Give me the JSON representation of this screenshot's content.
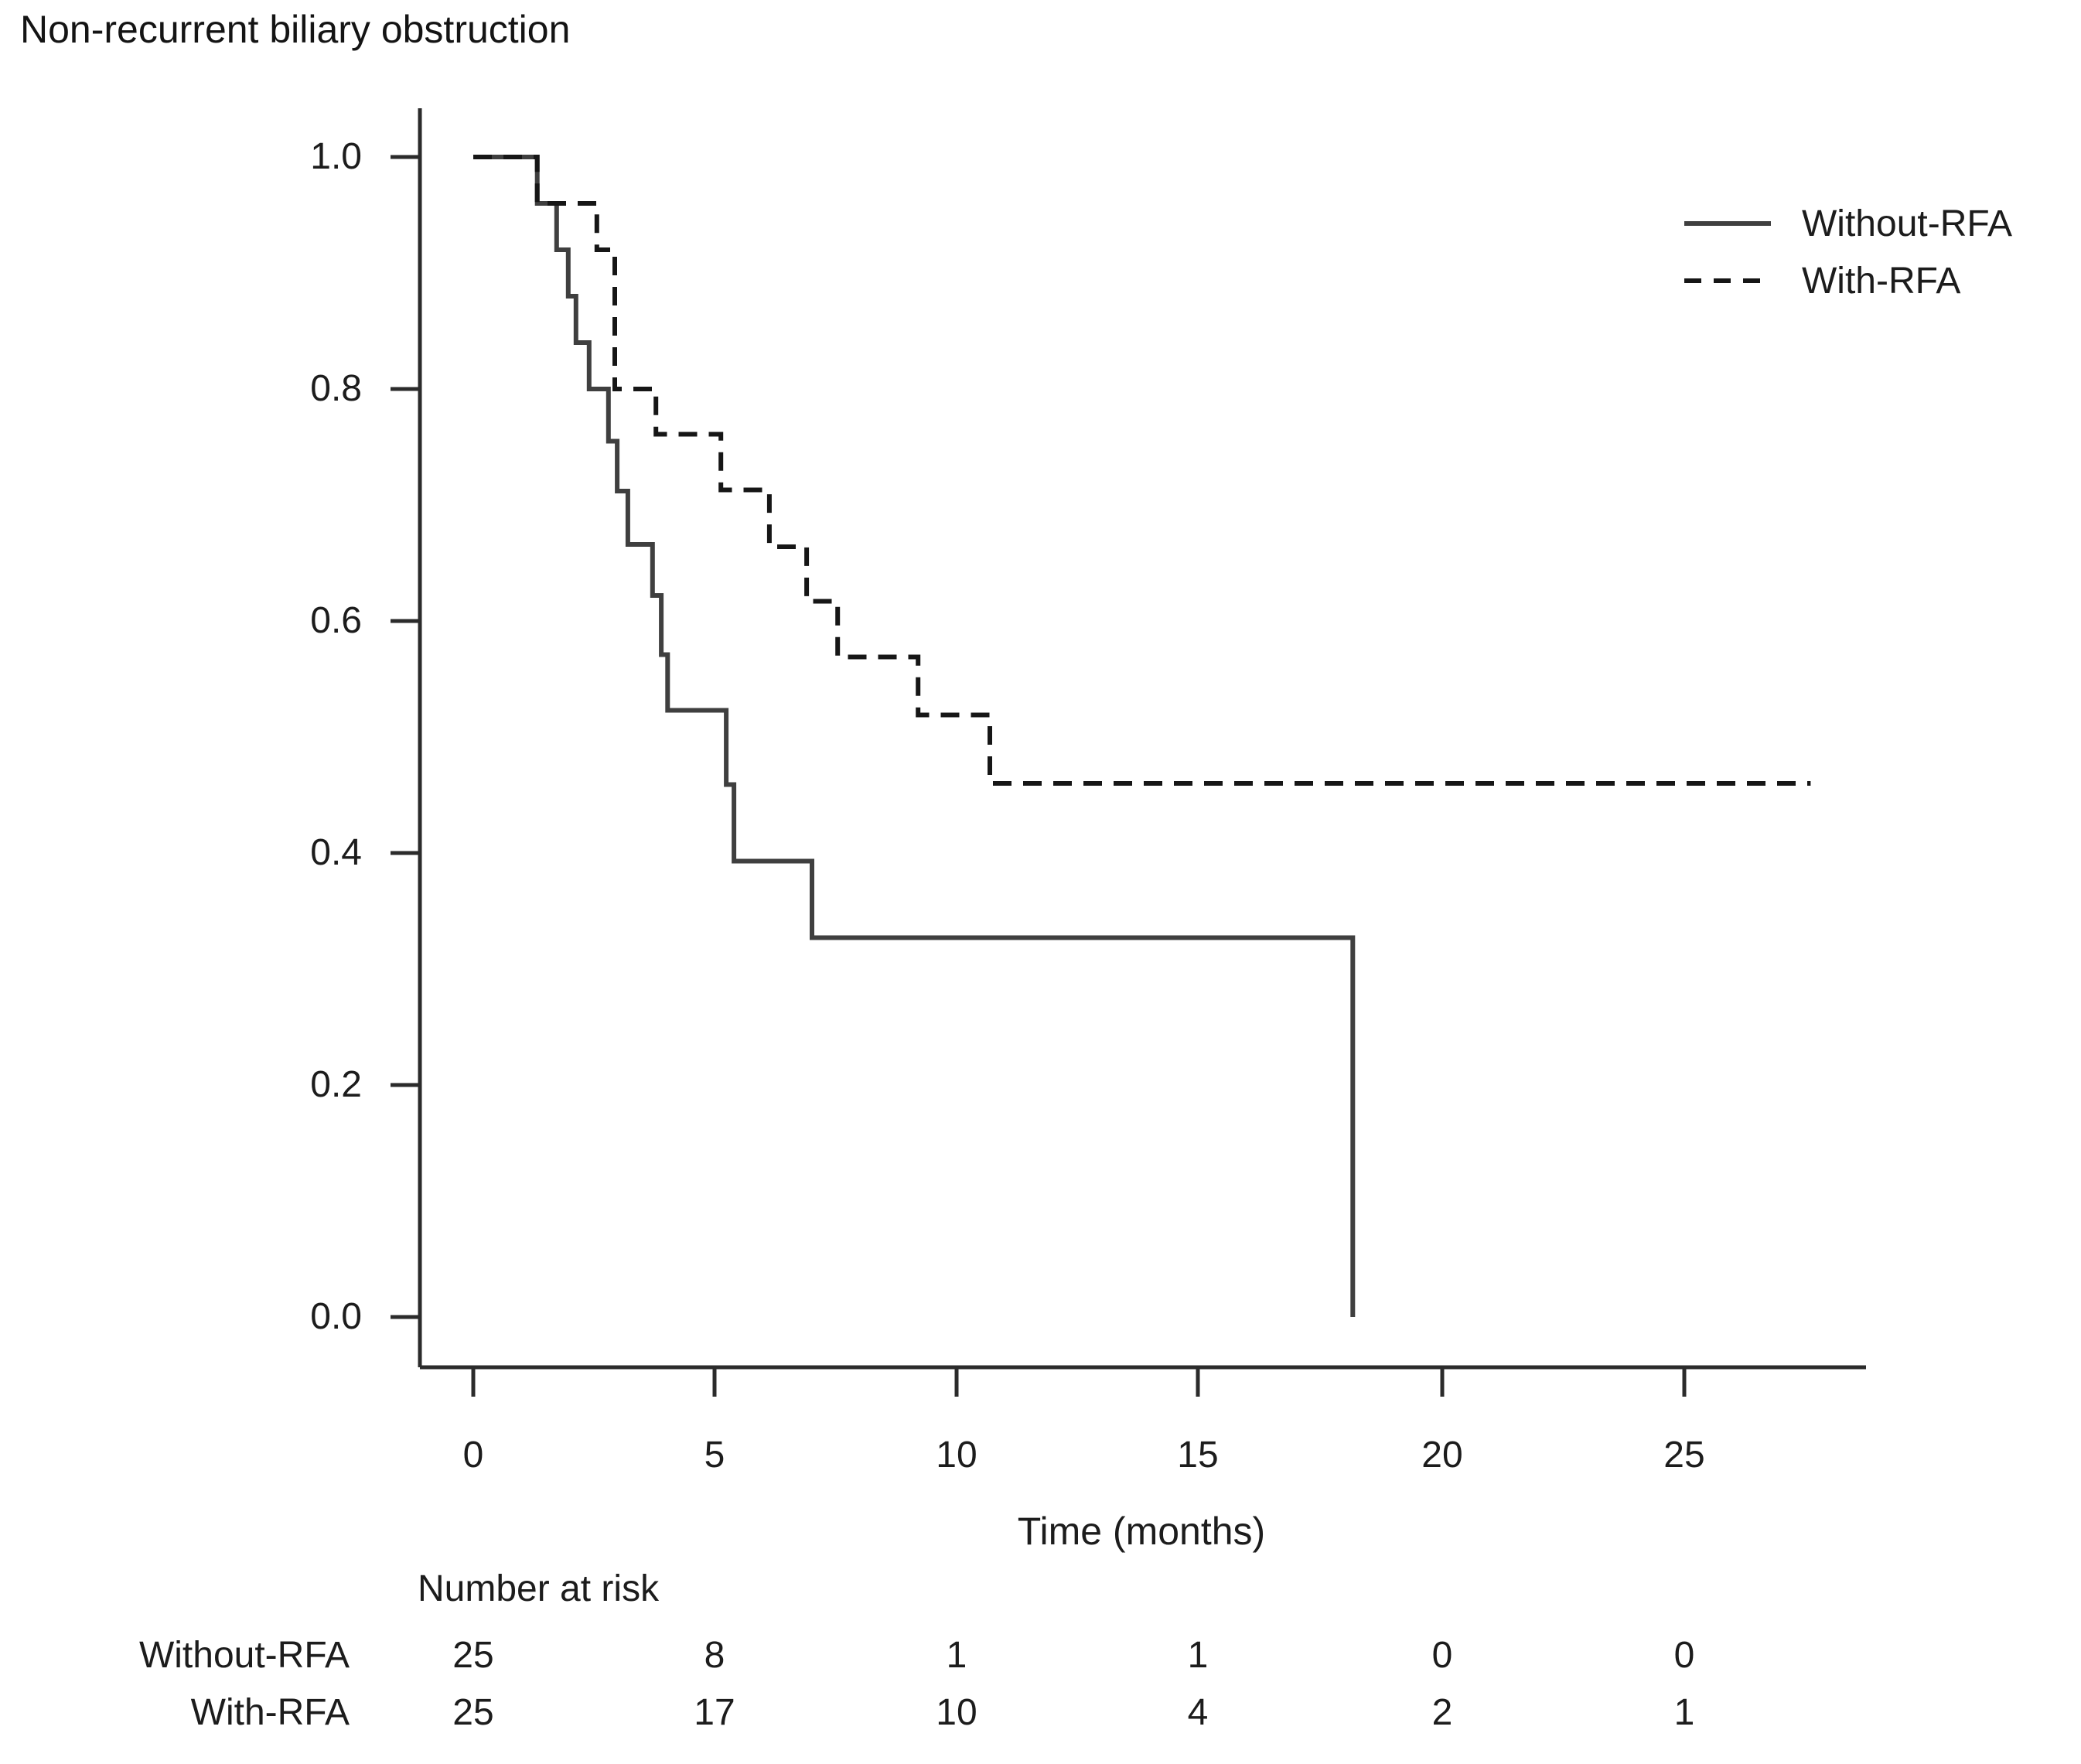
{
  "title": "Non-recurrent biliary obstruction",
  "axes": {
    "x_label": "Time (months)",
    "x_tick_labels": [
      "0",
      "5",
      "10",
      "15",
      "20",
      "25"
    ],
    "y_tick_labels": [
      "1.0",
      "0.8",
      "0.6",
      "0.4",
      "0.2",
      "0.0"
    ]
  },
  "colors": {
    "without_rfa_line": "#3f3f3f",
    "with_rfa_line": "#161616",
    "axis": "#2b2b2b",
    "text": "#1c1c1c",
    "background": "#ffffff"
  },
  "chart_data": {
    "type": "line",
    "chart_kind": "kaplan_meier_step",
    "title": "Non-recurrent biliary obstruction",
    "xlabel": "Time (months)",
    "ylabel": "",
    "xlim": [
      -1.1,
      28.8
    ],
    "ylim": [
      -0.045,
      1.09
    ],
    "x_ticks": [
      0,
      5,
      10,
      15,
      20,
      25
    ],
    "y_ticks": [
      1.0,
      0.8,
      0.6,
      0.4,
      0.2,
      0.0
    ],
    "grid": false,
    "legend_position": "upper right",
    "series": [
      {
        "name": "Without-RFA",
        "style": "solid",
        "color": "#3f3f3f",
        "steps_t_survival": [
          [
            0,
            1.0
          ],
          [
            1.32,
            0.96
          ],
          [
            1.72,
            0.92
          ],
          [
            1.96,
            0.88
          ],
          [
            2.12,
            0.84
          ],
          [
            2.39,
            0.8
          ],
          [
            2.79,
            0.755
          ],
          [
            2.97,
            0.712
          ],
          [
            3.19,
            0.666
          ],
          [
            3.7,
            0.622
          ],
          [
            3.88,
            0.571
          ],
          [
            4.01,
            0.523
          ],
          [
            5.22,
            0.459
          ],
          [
            5.38,
            0.393
          ],
          [
            6.99,
            0.327
          ],
          [
            18.15,
            0.0
          ]
        ],
        "end_t": 18.15
      },
      {
        "name": "With-RFA",
        "style": "dashed",
        "color": "#161616",
        "steps_t_survival": [
          [
            0,
            1.0
          ],
          [
            1.32,
            0.96
          ],
          [
            2.55,
            0.92
          ],
          [
            2.92,
            0.8
          ],
          [
            3.77,
            0.761
          ],
          [
            5.11,
            0.713
          ],
          [
            6.11,
            0.664
          ],
          [
            6.88,
            0.617
          ],
          [
            7.52,
            0.569
          ],
          [
            9.18,
            0.519
          ],
          [
            10.66,
            0.46
          ]
        ],
        "end_t": 27.6
      }
    ],
    "number_at_risk": {
      "header": "Number at risk",
      "time_points": [
        0,
        5,
        10,
        15,
        20,
        25
      ],
      "rows": [
        {
          "name": "Without-RFA",
          "counts": [
            25,
            8,
            1,
            1,
            0,
            0
          ]
        },
        {
          "name": "With-RFA",
          "counts": [
            25,
            17,
            10,
            4,
            2,
            1
          ]
        }
      ]
    }
  }
}
